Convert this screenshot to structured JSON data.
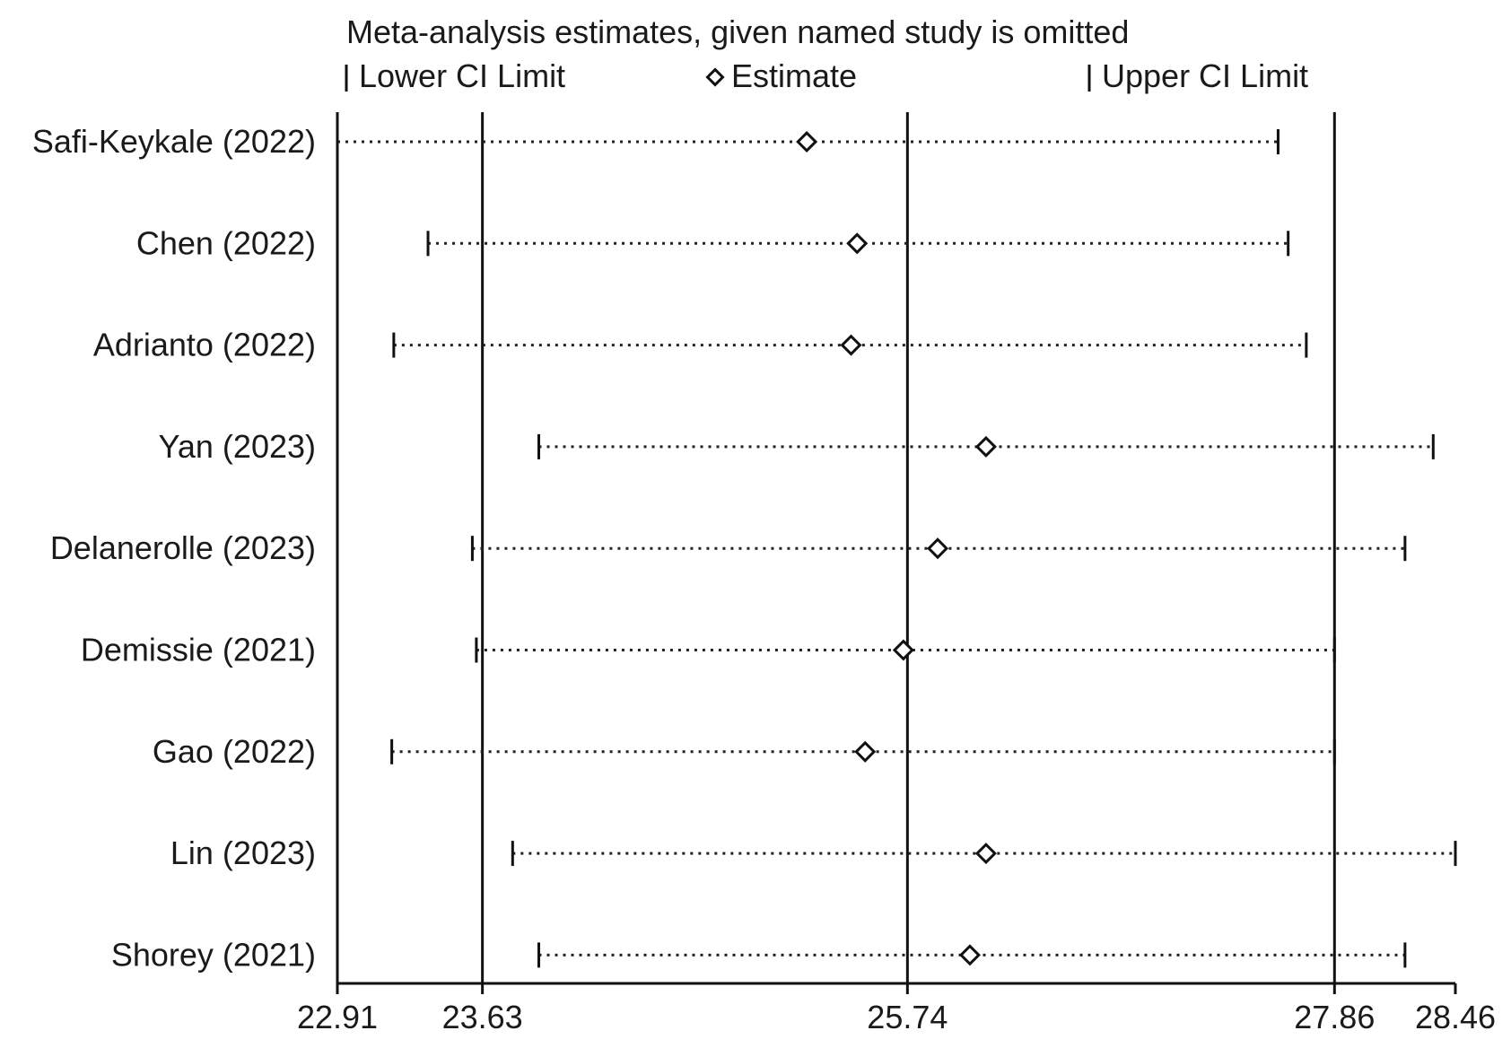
{
  "chart_data": {
    "type": "forest",
    "title": "Meta-analysis estimates, given named study is omitted",
    "legend": {
      "lower": "Lower CI Limit",
      "estimate": "Estimate",
      "upper": "Upper CI Limit",
      "position": "top"
    },
    "xlim": [
      22.91,
      28.46
    ],
    "x_ticks": [
      "22.91",
      "23.63",
      "25.74",
      "27.86",
      "28.46"
    ],
    "x_tick_values": [
      22.91,
      23.63,
      25.74,
      27.86,
      28.46
    ],
    "reference_lines": [
      23.63,
      25.74,
      27.86
    ],
    "studies": [
      {
        "name": "Safi-Keykale (2022)",
        "lower": 22.91,
        "estimate": 25.24,
        "upper": 27.58
      },
      {
        "name": "Chen (2022)",
        "lower": 23.36,
        "estimate": 25.49,
        "upper": 27.63
      },
      {
        "name": "Adrianto (2022)",
        "lower": 23.19,
        "estimate": 25.46,
        "upper": 27.72
      },
      {
        "name": "Yan (2023)",
        "lower": 23.91,
        "estimate": 26.13,
        "upper": 28.35
      },
      {
        "name": "Delanerolle (2023)",
        "lower": 23.58,
        "estimate": 25.89,
        "upper": 28.21
      },
      {
        "name": "Demissie (2021)",
        "lower": 23.6,
        "estimate": 25.72,
        "upper": 27.86
      },
      {
        "name": "Gao (2022)",
        "lower": 23.18,
        "estimate": 25.53,
        "upper": 27.86
      },
      {
        "name": "Lin (2023)",
        "lower": 23.78,
        "estimate": 26.13,
        "upper": 28.46
      },
      {
        "name": "Shorey (2021)",
        "lower": 23.91,
        "estimate": 26.05,
        "upper": 28.21
      }
    ]
  },
  "colors": {
    "ink": "#111111",
    "background": "#ffffff"
  }
}
